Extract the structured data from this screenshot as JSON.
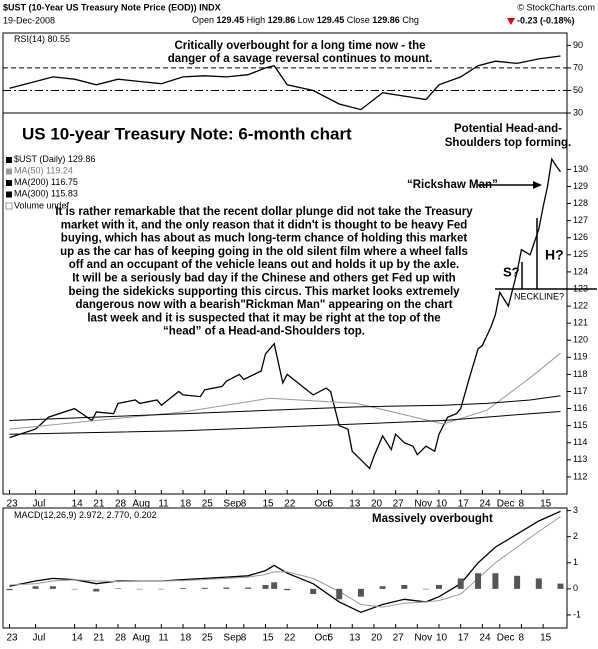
{
  "header": {
    "symbol": "$UST (10-Year US Treasury Note Price (EOD)) INDX",
    "source": "© StockCharts.com",
    "date": "19-Dec-2008",
    "quote": [
      {
        "label": "Open",
        "value": 129.45
      },
      {
        "label": "High",
        "value": 129.86
      },
      {
        "label": "Low",
        "value": 129.45
      },
      {
        "label": "Close",
        "value": 129.86
      }
    ],
    "change_label": "Chg",
    "change": "-0.23 (-0.18%)"
  },
  "annotations": {
    "title": "US 10-year Treasury Note: 6-month chart",
    "rsi_note": [
      "Critically overbought for a long time now - the",
      "danger of a savage reversal continues to mount."
    ],
    "pattern_note": [
      "Potential Head-and-",
      "Shoulders top forming."
    ],
    "rickshaw": "“Rickshaw Man”",
    "commentary": [
      "It is rather remarkable that the recent dollar plunge did not take the Treasury",
      "market with it, and the only reason that it didn't is thought to be heavy Fed",
      "buying, which has about as much long-term chance of holding this market",
      "up as the car has of keeping going in the old silent film where a wheel falls",
      "off and an occupant of the vehicle leans out and holds it up by the axle.",
      "It will be a seriously bad day if the Chinese and others get Fed up with",
      "being the sidekicks supporting this circus. This market looks extremely",
      "dangerous now with a bearish\"Rickman Man\" appearing on the chart",
      "last week and it is suspected that it may be right at the top of the",
      "“head” of a Head-and-Shoulders top."
    ],
    "shoulder": "S?",
    "head": "H?",
    "neckline": "NECKLINE?",
    "macd_note": "Massively overbought"
  },
  "chart_data": [
    {
      "type": "line",
      "xlim": [
        -1.5,
        128.5
      ],
      "ylim": [
        30,
        101
      ],
      "yticks": [
        30,
        50,
        70,
        90
      ],
      "reference_lines": [
        70,
        50
      ],
      "series": [
        {
          "name": "RSI(14)",
          "color": "#000000",
          "x": [
            0,
            6,
            10,
            15,
            20,
            25,
            30,
            35,
            40,
            45,
            50,
            55,
            59,
            61,
            64,
            70,
            76,
            81,
            86,
            91,
            96,
            99,
            104,
            108,
            112,
            117,
            122,
            127
          ],
          "values": [
            52,
            58,
            62,
            60,
            55,
            60,
            58,
            56,
            62,
            63,
            62,
            64,
            70,
            72,
            55,
            50,
            38,
            33,
            48,
            45,
            42,
            55,
            62,
            72,
            76,
            74,
            78,
            80.55
          ]
        }
      ]
    },
    {
      "type": "line",
      "xlim": [
        -1.5,
        128.5
      ],
      "ylim": [
        111,
        133.3
      ],
      "yticks": [
        112,
        113,
        114,
        115,
        116,
        117,
        118,
        119,
        120,
        121,
        122,
        123,
        124,
        125,
        126,
        127,
        128,
        129,
        130
      ],
      "xticks": [
        {
          "value": 0,
          "label": "23"
        },
        {
          "value": 6,
          "label": "Jul"
        },
        {
          "value": 15,
          "label": "14"
        },
        {
          "value": 20,
          "label": "21"
        },
        {
          "value": 25,
          "label": "28"
        },
        {
          "value": 29,
          "label": "Aug"
        },
        {
          "value": 35,
          "label": "11"
        },
        {
          "value": 40,
          "label": "18"
        },
        {
          "value": 45,
          "label": "25"
        },
        {
          "value": 50,
          "label": "Sep"
        },
        {
          "value": 54,
          "label": "8"
        },
        {
          "value": 59,
          "label": "15"
        },
        {
          "value": 64,
          "label": "22"
        },
        {
          "value": 71,
          "label": "Oct"
        },
        {
          "value": 74,
          "label": "6"
        },
        {
          "value": 79,
          "label": "13"
        },
        {
          "value": 84,
          "label": "20"
        },
        {
          "value": 89,
          "label": "27"
        },
        {
          "value": 94,
          "label": "Nov"
        },
        {
          "value": 99,
          "label": "10"
        },
        {
          "value": 104,
          "label": "17"
        },
        {
          "value": 109,
          "label": "24"
        },
        {
          "value": 113,
          "label": "Dec"
        },
        {
          "value": 118,
          "label": "8"
        },
        {
          "value": 123,
          "label": "15"
        }
      ],
      "volume_label": "Volume undef",
      "series": [
        {
          "name": "$UST (Daily)",
          "color": "#000000",
          "x": [
            0,
            6,
            9,
            15,
            19,
            20,
            24,
            25,
            29,
            30,
            34,
            35,
            39,
            40,
            44,
            45,
            49,
            50,
            53,
            54,
            58,
            59,
            61,
            63,
            64,
            68,
            70,
            73,
            74,
            76,
            78,
            79,
            81,
            83,
            84,
            86,
            88,
            89,
            91,
            93,
            94,
            96,
            98,
            99,
            101,
            103,
            104,
            106,
            108,
            109,
            111,
            112,
            113,
            115,
            117,
            118,
            120,
            122,
            123,
            124,
            125,
            126,
            127
          ],
          "values": [
            114.3,
            114.8,
            115.5,
            116.0,
            115.3,
            115.8,
            115.7,
            116.3,
            116.5,
            116.3,
            116.5,
            116.2,
            117.0,
            116.8,
            116.7,
            117.1,
            117.3,
            117.6,
            118.0,
            117.7,
            118.2,
            119.2,
            119.8,
            117.5,
            118.0,
            117.2,
            116.8,
            117.2,
            117.0,
            115.0,
            114.8,
            113.5,
            113.0,
            112.5,
            113.2,
            114.4,
            113.6,
            114.5,
            114.0,
            113.8,
            113.3,
            113.8,
            113.5,
            114.5,
            115.5,
            115.7,
            116.0,
            117.8,
            119.5,
            119.7,
            120.8,
            121.5,
            122.8,
            122.0,
            124.0,
            125.3,
            125.0,
            126.5,
            127.8,
            129.0,
            130.6,
            130.2,
            129.86
          ]
        },
        {
          "name": "MA(50)",
          "color": "#999999",
          "x": [
            0,
            20,
            40,
            60,
            80,
            100,
            110,
            120,
            127
          ],
          "values": [
            114.8,
            115.3,
            115.8,
            116.6,
            116.3,
            115.1,
            115.9,
            117.8,
            119.24
          ]
        },
        {
          "name": "MA(200)",
          "color": "#000000",
          "x": [
            0,
            20,
            40,
            60,
            80,
            100,
            110,
            120,
            127
          ],
          "values": [
            115.3,
            115.5,
            115.7,
            115.9,
            116.1,
            116.2,
            116.3,
            116.5,
            116.75
          ]
        },
        {
          "name": "MA(300)",
          "color": "#000000",
          "x": [
            0,
            20,
            40,
            60,
            80,
            100,
            110,
            120,
            127
          ],
          "values": [
            114.5,
            114.6,
            114.7,
            114.9,
            115.1,
            115.3,
            115.5,
            115.7,
            115.83
          ]
        }
      ]
    },
    {
      "type": "line",
      "xlim": [
        -1.5,
        128.5
      ],
      "ylim": [
        -1.5,
        3.1
      ],
      "yticks": [
        -1,
        0,
        1,
        2,
        3
      ],
      "xticks": [
        {
          "value": 0,
          "label": "23"
        },
        {
          "value": 6,
          "label": "Jul"
        },
        {
          "value": 15,
          "label": "14"
        },
        {
          "value": 20,
          "label": "21"
        },
        {
          "value": 25,
          "label": "28"
        },
        {
          "value": 29,
          "label": "Aug"
        },
        {
          "value": 35,
          "label": "11"
        },
        {
          "value": 40,
          "label": "18"
        },
        {
          "value": 45,
          "label": "25"
        },
        {
          "value": 50,
          "label": "Sep"
        },
        {
          "value": 54,
          "label": "8"
        },
        {
          "value": 59,
          "label": "15"
        },
        {
          "value": 64,
          "label": "22"
        },
        {
          "value": 71,
          "label": "Oct"
        },
        {
          "value": 74,
          "label": "6"
        },
        {
          "value": 79,
          "label": "13"
        },
        {
          "value": 84,
          "label": "20"
        },
        {
          "value": 89,
          "label": "27"
        },
        {
          "value": 94,
          "label": "Nov"
        },
        {
          "value": 99,
          "label": "10"
        },
        {
          "value": 104,
          "label": "17"
        },
        {
          "value": 109,
          "label": "24"
        },
        {
          "value": 113,
          "label": "Dec"
        },
        {
          "value": 118,
          "label": "8"
        },
        {
          "value": 123,
          "label": "15"
        }
      ],
      "legend_values": [
        "2.972,",
        "2.770,",
        "0.202"
      ],
      "series": [
        {
          "name": "MACD(12,26,9)",
          "color": "#000000",
          "x": [
            0,
            6,
            10,
            15,
            20,
            25,
            30,
            35,
            40,
            45,
            50,
            55,
            59,
            61,
            64,
            70,
            76,
            81,
            86,
            91,
            96,
            99,
            104,
            108,
            112,
            117,
            122,
            127
          ],
          "values": [
            0.1,
            0.3,
            0.4,
            0.35,
            0.2,
            0.3,
            0.3,
            0.3,
            0.35,
            0.4,
            0.45,
            0.5,
            0.7,
            0.9,
            0.6,
            0.2,
            -0.5,
            -0.9,
            -0.6,
            -0.4,
            -0.5,
            -0.3,
            0.2,
            1.0,
            1.6,
            2.1,
            2.6,
            2.972
          ]
        },
        {
          "color": "#999999",
          "x": [
            0,
            6,
            10,
            15,
            20,
            25,
            30,
            35,
            40,
            45,
            50,
            55,
            59,
            61,
            64,
            70,
            76,
            81,
            86,
            91,
            96,
            99,
            104,
            108,
            112,
            117,
            122,
            127
          ],
          "values": [
            0.15,
            0.2,
            0.3,
            0.35,
            0.3,
            0.28,
            0.3,
            0.3,
            0.32,
            0.36,
            0.4,
            0.45,
            0.55,
            0.65,
            0.65,
            0.4,
            -0.1,
            -0.6,
            -0.7,
            -0.55,
            -0.5,
            -0.45,
            -0.2,
            0.4,
            1.0,
            1.6,
            2.2,
            2.77
          ]
        },
        {
          "type": "bar",
          "color": "#555555",
          "x": [
            0,
            6,
            10,
            15,
            20,
            25,
            30,
            35,
            40,
            45,
            50,
            55,
            59,
            61,
            64,
            70,
            76,
            81,
            86,
            91,
            96,
            99,
            104,
            108,
            112,
            117,
            122,
            127
          ],
          "values": [
            -0.05,
            0.1,
            0.1,
            0,
            -0.1,
            0.02,
            0,
            0,
            0.03,
            0.04,
            0.05,
            0.05,
            0.15,
            0.25,
            -0.05,
            -0.2,
            -0.4,
            -0.3,
            0.1,
            0.15,
            0,
            0.15,
            0.4,
            0.6,
            0.6,
            0.5,
            0.4,
            0.202
          ]
        }
      ]
    }
  ]
}
